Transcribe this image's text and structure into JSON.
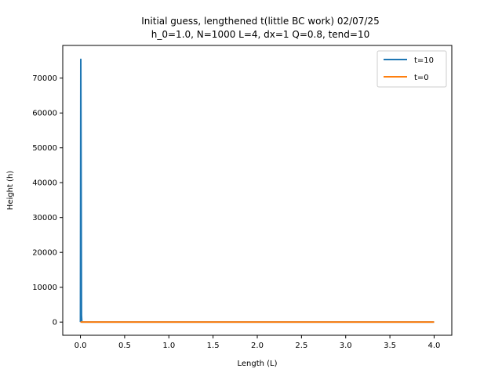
{
  "chart_data": {
    "type": "line",
    "title": "Initial guess, lengthened t(little BC work) 02/07/25",
    "subtitle": "h_0=1.0, N=1000 L=4, dx=1  Q=0.8, tend=10",
    "xlabel": "Length (L)",
    "ylabel": "Height (h)",
    "xlim": [
      -0.2,
      4.2
    ],
    "ylim": [
      -3780,
      79380
    ],
    "xticks": [
      0.0,
      0.5,
      1.0,
      1.5,
      2.0,
      2.5,
      3.0,
      3.5,
      4.0
    ],
    "xtick_labels": [
      "0.0",
      "0.5",
      "1.0",
      "1.5",
      "2.0",
      "2.5",
      "3.0",
      "3.5",
      "4.0"
    ],
    "yticks": [
      0,
      10000,
      20000,
      30000,
      40000,
      50000,
      60000,
      70000
    ],
    "ytick_labels": [
      "0",
      "10000",
      "20000",
      "30000",
      "40000",
      "50000",
      "60000",
      "70000"
    ],
    "grid": false,
    "legend_position": "top-right",
    "series": [
      {
        "name": "t=10",
        "color": "#1f77b4",
        "x": [
          0.0,
          0.004,
          0.008,
          0.012,
          0.016,
          0.02,
          4.0
        ],
        "y": [
          0,
          75400,
          40000,
          2000,
          0,
          0,
          0
        ]
      },
      {
        "name": "t=0",
        "color": "#ff7f0e",
        "x": [
          0.0,
          4.0
        ],
        "y": [
          1,
          1
        ]
      }
    ]
  }
}
